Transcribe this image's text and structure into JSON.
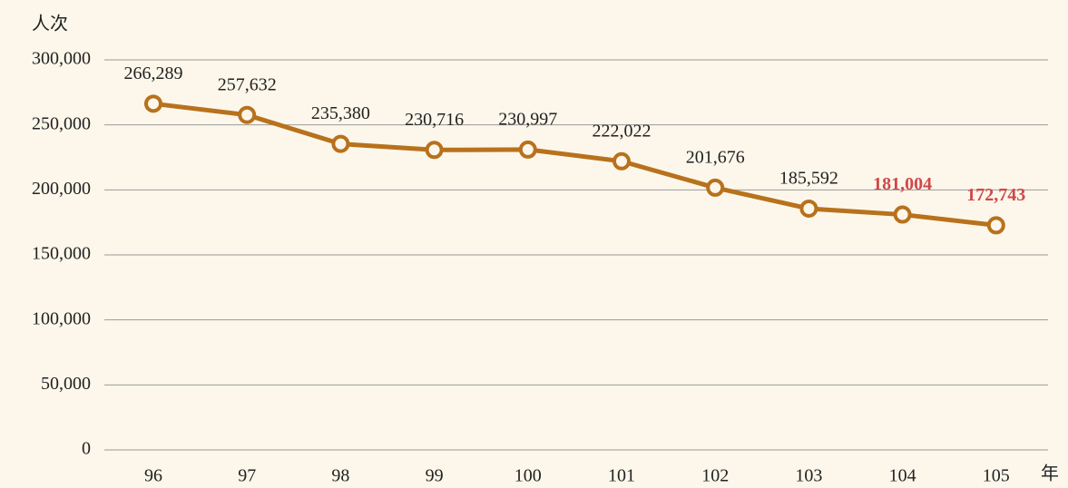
{
  "chart_data": {
    "type": "line",
    "y_label": "人次",
    "x_label": "年",
    "categories": [
      "96",
      "97",
      "98",
      "99",
      "100",
      "101",
      "102",
      "103",
      "104",
      "105"
    ],
    "series": [
      {
        "name": "人次",
        "color": "#b8711c",
        "values": [
          266289,
          257632,
          235380,
          230716,
          230997,
          222022,
          201676,
          185592,
          181004,
          172743
        ],
        "value_labels": [
          "266,289",
          "257,632",
          "235,380",
          "230,716",
          "230,997",
          "222,022",
          "201,676",
          "185,592",
          "181,004",
          "172,743"
        ],
        "value_label_colors": [
          "#222222",
          "#222222",
          "#222222",
          "#222222",
          "#222222",
          "#222222",
          "#222222",
          "#222222",
          "#d0474a",
          "#d0474a"
        ]
      }
    ],
    "ylim": [
      0,
      300000
    ],
    "yticks": [
      0,
      {
        "value": 50000,
        "label": "50,000"
      },
      {
        "value": 100000,
        "label": "100,000"
      },
      {
        "value": 150000,
        "label": "150,000"
      },
      {
        "value": 200000,
        "label": "200,000"
      },
      {
        "value": 250000,
        "label": "250,000"
      },
      {
        "value": 300000,
        "label": "300,000"
      }
    ],
    "grid": true
  }
}
